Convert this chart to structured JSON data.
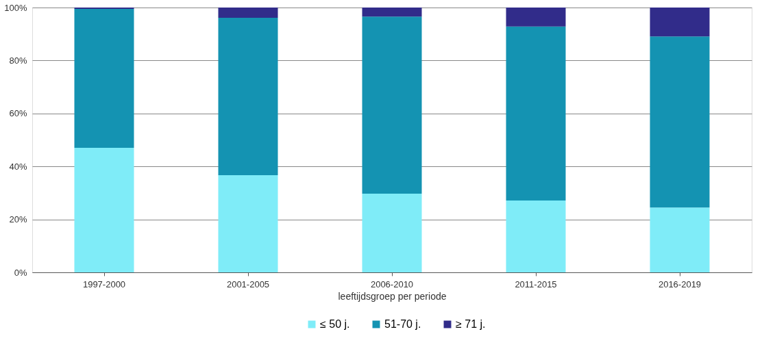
{
  "chart_data": {
    "type": "bar",
    "stacked": true,
    "xlabel": "leeftijdsgroep per periode",
    "categories": [
      "1997-2000",
      "2001-2005",
      "2006-2010",
      "2011-2015",
      "2016-2019"
    ],
    "series": [
      {
        "name": "≤ 50 j.",
        "color": "#7fecf8",
        "values": [
          47.0,
          36.7,
          29.7,
          27.1,
          24.5
        ]
      },
      {
        "name": "51-70 j.",
        "color": "#1493b2",
        "values": [
          52.5,
          59.4,
          66.9,
          65.7,
          64.6
        ]
      },
      {
        "name": "≥ 71 j.",
        "color": "#312c8a",
        "values": [
          0.5,
          3.9,
          3.4,
          7.2,
          10.9
        ]
      }
    ],
    "ylim": [
      0,
      100
    ],
    "yticks": [
      {
        "value": 0,
        "label": "0%"
      },
      {
        "value": 20,
        "label": "20%"
      },
      {
        "value": 40,
        "label": "40%"
      },
      {
        "value": 60,
        "label": "60%"
      },
      {
        "value": 80,
        "label": "80%"
      },
      {
        "value": 100,
        "label": "100%"
      }
    ],
    "grid": "y",
    "legend": "bottom"
  }
}
